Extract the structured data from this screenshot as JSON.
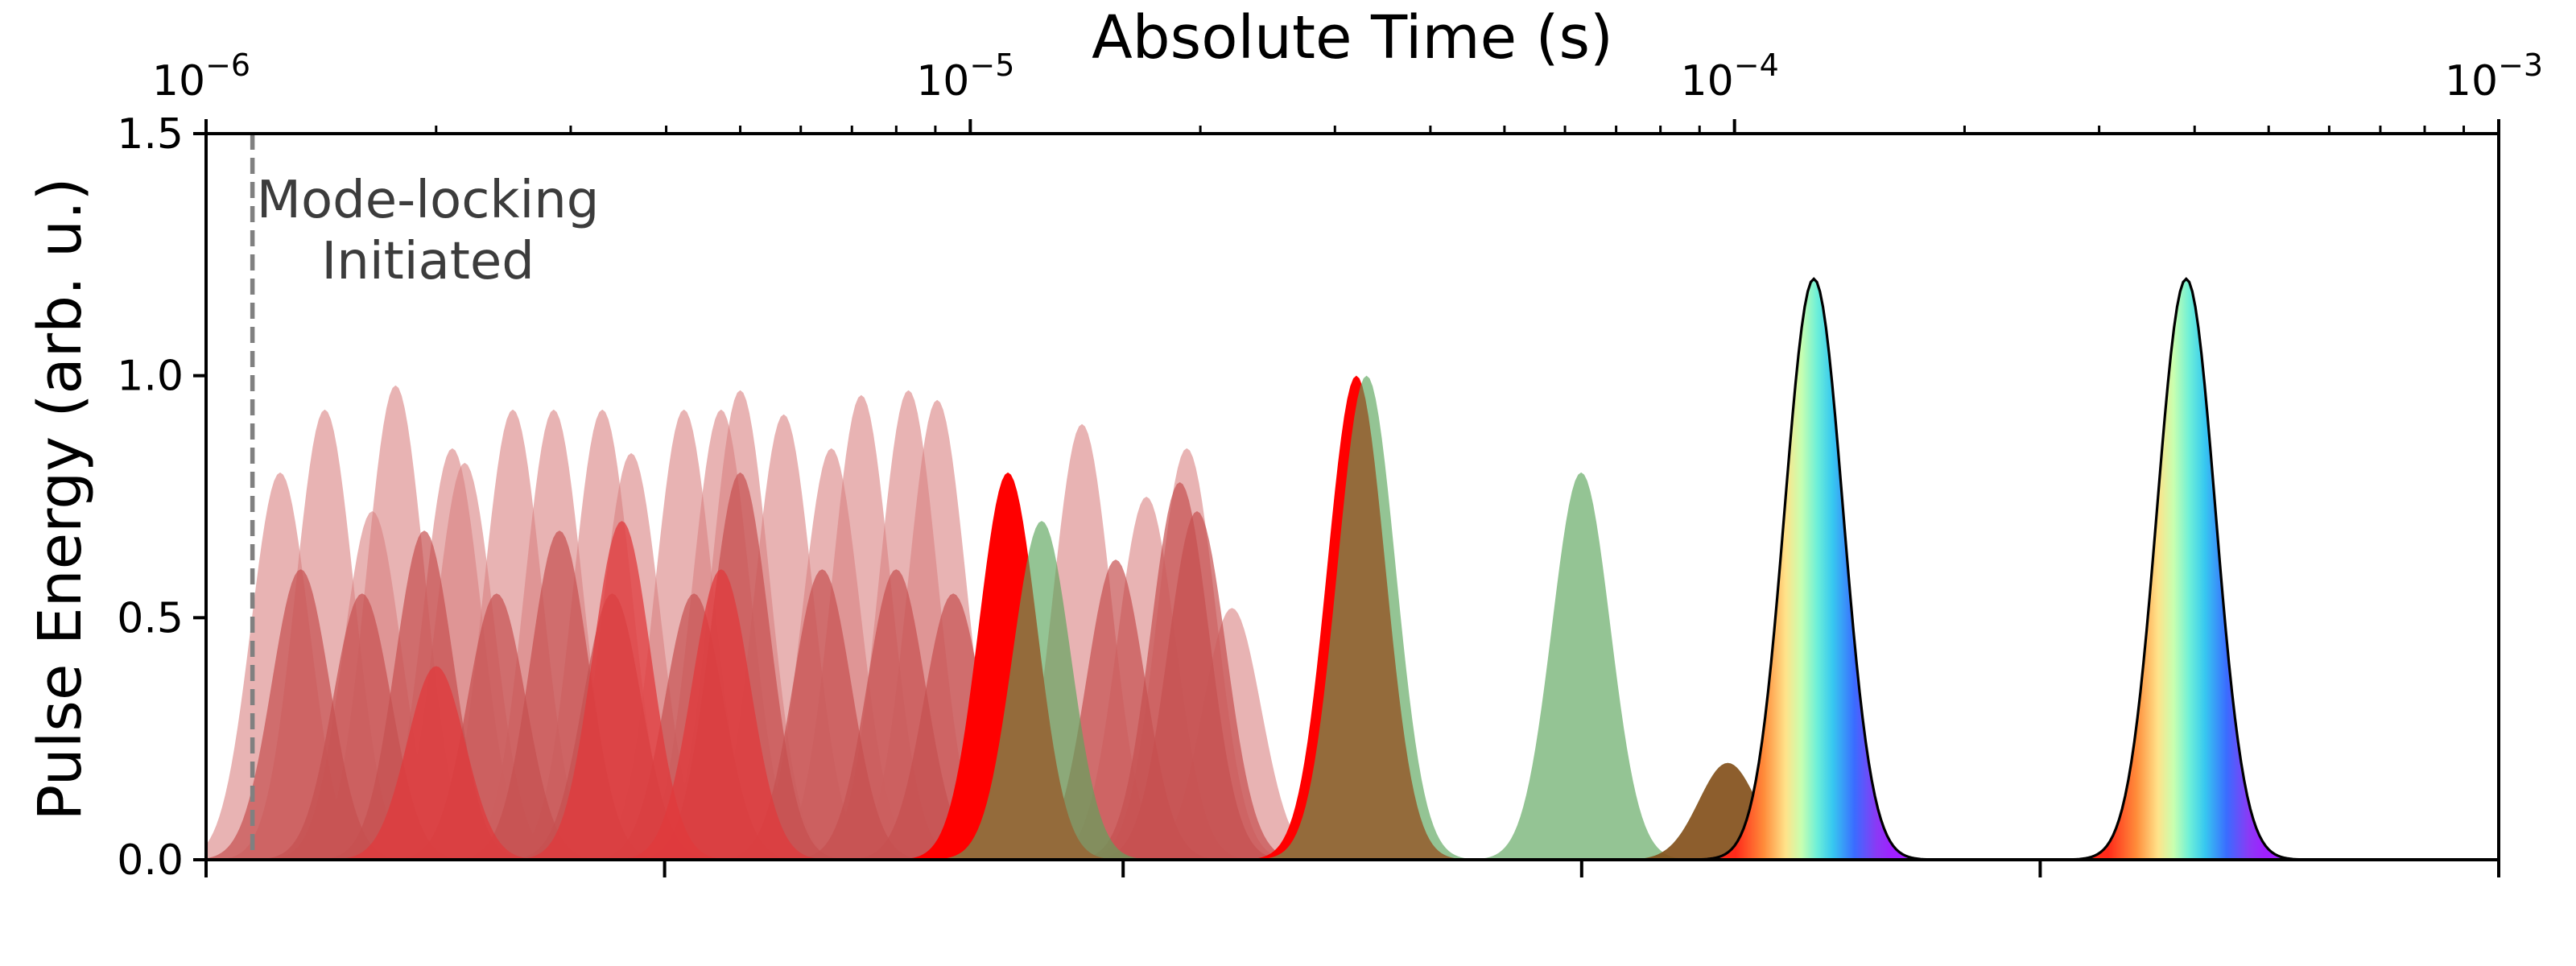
{
  "chart_data": {
    "type": "area",
    "title": "",
    "xlabel_top": "Absolute Time (s)",
    "ylabel": "Pulse Energy (arb. u.)",
    "x_scale_top": "log",
    "xlim_top": [
      1e-06,
      0.001
    ],
    "x_ticks_top": [
      {
        "base": "10",
        "exp": "−6"
      },
      {
        "base": "10",
        "exp": "−5"
      },
      {
        "base": "10",
        "exp": "−4"
      },
      {
        "base": "10",
        "exp": "−3"
      }
    ],
    "ylim": [
      0,
      1.5
    ],
    "y_ticks": [
      "0.0",
      "0.5",
      "1.0",
      "1.5"
    ],
    "bottom_axis_ticks": 6,
    "grid": false,
    "annotation": {
      "lines": [
        "Mode-locking",
        "Initiated"
      ],
      "x": 1.15e-06,
      "color": "#808080"
    },
    "series": [
      {
        "color": "#d98080",
        "opacity": 0.6,
        "pulses": [
          {
            "x": 1.25e-06,
            "y": 0.8
          },
          {
            "x": 1.43e-06,
            "y": 0.93
          },
          {
            "x": 1.65e-06,
            "y": 0.72
          },
          {
            "x": 1.77e-06,
            "y": 0.98
          },
          {
            "x": 2.1e-06,
            "y": 0.85
          },
          {
            "x": 2.18e-06,
            "y": 0.82
          },
          {
            "x": 2.52e-06,
            "y": 0.93
          },
          {
            "x": 2.85e-06,
            "y": 0.93
          },
          {
            "x": 3.3e-06,
            "y": 0.93
          },
          {
            "x": 3.6e-06,
            "y": 0.84
          },
          {
            "x": 4.22e-06,
            "y": 0.93
          },
          {
            "x": 4.72e-06,
            "y": 0.93
          },
          {
            "x": 5e-06,
            "y": 0.97
          },
          {
            "x": 5.7e-06,
            "y": 0.92
          },
          {
            "x": 6.58e-06,
            "y": 0.85
          },
          {
            "x": 7.2e-06,
            "y": 0.96
          },
          {
            "x": 8.3e-06,
            "y": 0.97
          },
          {
            "x": 9.05e-06,
            "y": 0.95
          },
          {
            "x": 1.4e-05,
            "y": 0.9
          },
          {
            "x": 1.7e-05,
            "y": 0.75
          },
          {
            "x": 1.92e-05,
            "y": 0.85
          },
          {
            "x": 2.2e-05,
            "y": 0.52
          }
        ]
      },
      {
        "color": "#c65050",
        "opacity": 0.7,
        "pulses": [
          {
            "x": 1.33e-06,
            "y": 0.6
          },
          {
            "x": 1.6e-06,
            "y": 0.55
          },
          {
            "x": 1.93e-06,
            "y": 0.68
          },
          {
            "x": 2.4e-06,
            "y": 0.55
          },
          {
            "x": 2.9e-06,
            "y": 0.68
          },
          {
            "x": 3.4e-06,
            "y": 0.55
          },
          {
            "x": 4.35e-06,
            "y": 0.55
          },
          {
            "x": 5e-06,
            "y": 0.8
          },
          {
            "x": 6.4e-06,
            "y": 0.6
          },
          {
            "x": 8e-06,
            "y": 0.6
          },
          {
            "x": 9.5e-06,
            "y": 0.55
          },
          {
            "x": 1.55e-05,
            "y": 0.62
          },
          {
            "x": 1.88e-05,
            "y": 0.78
          },
          {
            "x": 1.98e-05,
            "y": 0.72
          }
        ]
      },
      {
        "color": "#e0393c",
        "opacity": 0.75,
        "pulses": [
          {
            "x": 2e-06,
            "y": 0.4
          },
          {
            "x": 3.5e-06,
            "y": 0.7
          },
          {
            "x": 4.72e-06,
            "y": 0.6
          }
        ]
      },
      {
        "color": "#ff0000",
        "opacity": 1.0,
        "pulses": [
          {
            "x": 1.12e-05,
            "y": 0.8
          },
          {
            "x": 3.2e-05,
            "y": 1.0
          }
        ]
      },
      {
        "color": "#5aa45a",
        "opacity": 0.65,
        "pulses": [
          {
            "x": 1.24e-05,
            "y": 0.7
          },
          {
            "x": 3.3e-05,
            "y": 1.0
          },
          {
            "x": 6.3e-05,
            "y": 0.8
          },
          {
            "x": 9.8e-05,
            "y": 0.2
          }
        ]
      },
      {
        "color": "#8b4513",
        "opacity": 0.8,
        "pulses": [
          {
            "x": 9.8e-05,
            "y": 0.2
          }
        ]
      },
      {
        "color": "rainbow",
        "outline": "#000000",
        "pulses": [
          {
            "x": 0.000127,
            "y": 1.2
          },
          {
            "x": 0.00039,
            "y": 1.2
          }
        ]
      }
    ]
  }
}
